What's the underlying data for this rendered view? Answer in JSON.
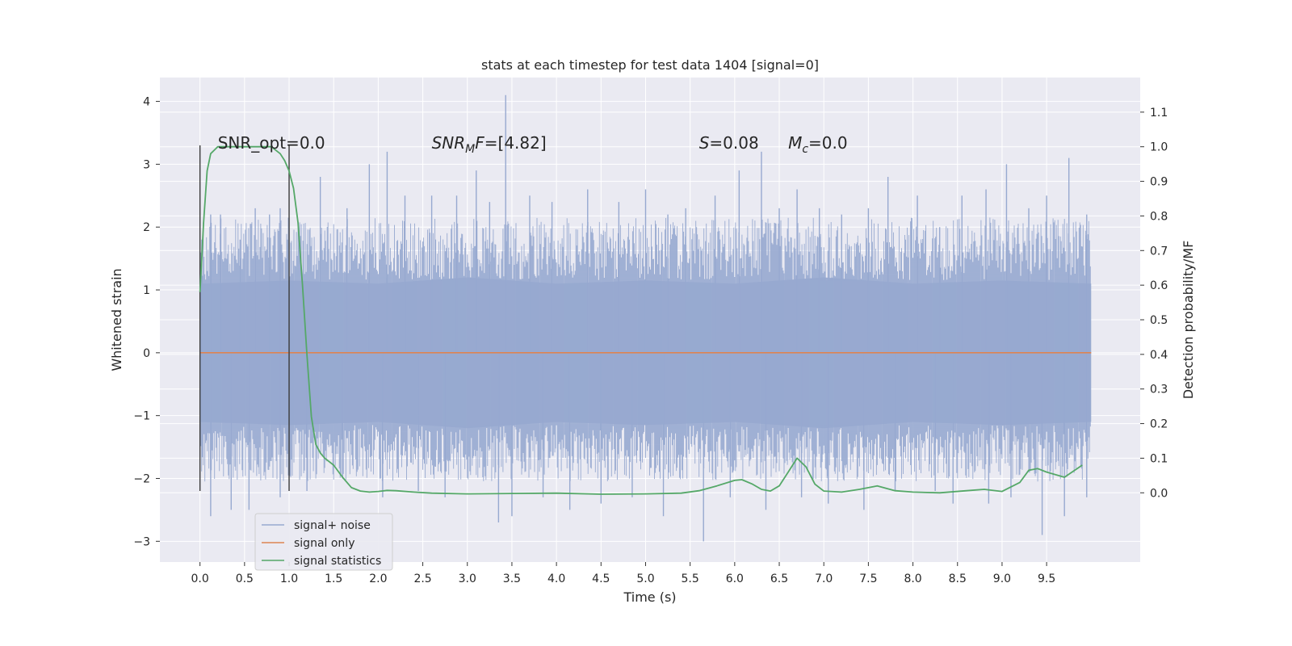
{
  "chart_data": {
    "type": "line",
    "title": "stats at each timestep for test data 1404 [signal=0]",
    "xlabel": "Time (s)",
    "ylabel": "Whitened strain",
    "y2label": "Detection probability/MF",
    "xlim": [
      -0.45,
      10.55
    ],
    "ylim": [
      -3.33,
      4.38
    ],
    "y2lim": [
      -0.2,
      1.2
    ],
    "xticks": [
      "0.0",
      "0.5",
      "1.0",
      "1.5",
      "2.0",
      "2.5",
      "3.0",
      "3.5",
      "4.0",
      "4.5",
      "5.0",
      "5.5",
      "6.0",
      "6.5",
      "7.0",
      "7.5",
      "8.0",
      "8.5",
      "9.0",
      "9.5"
    ],
    "yticks": [
      "4",
      "3",
      "2",
      "1",
      "0",
      "−1",
      "−2",
      "−3"
    ],
    "y2ticks": [
      "1.1",
      "1.0",
      "0.9",
      "0.8",
      "0.7",
      "0.6",
      "0.5",
      "0.4",
      "0.3",
      "0.2",
      "0.1",
      "0.0"
    ],
    "grid": true,
    "legend_position": "lower-left",
    "colors": {
      "background": "#eaeaf2",
      "grid": "#ffffff",
      "noise": "#97a9d0",
      "signal": "#dd8452",
      "stats": "#55a868",
      "vline": "#3a3a3a"
    },
    "series": [
      {
        "name": "signal+ noise",
        "band_upper": [
          1.1,
          1.15,
          1.1,
          1.2,
          1.1,
          1.15,
          1.1,
          1.2,
          1.1,
          1.15,
          1.1
        ],
        "band_lower": [
          -1.1,
          -1.15,
          -1.1,
          -1.2,
          -1.1,
          -1.15,
          -1.1,
          -1.2,
          -1.1,
          -1.15,
          -1.1
        ],
        "spikes": [
          {
            "x": 0.02,
            "y": 1.8
          },
          {
            "x": 0.12,
            "y": 2.2
          },
          {
            "x": 0.23,
            "y": 2.2
          },
          {
            "x": 0.45,
            "y": 1.8
          },
          {
            "x": 0.62,
            "y": 2.3
          },
          {
            "x": 0.78,
            "y": 2.2
          },
          {
            "x": 0.9,
            "y": 2.3
          },
          {
            "x": 1.35,
            "y": 2.8
          },
          {
            "x": 1.65,
            "y": 2.3
          },
          {
            "x": 1.9,
            "y": 3.0
          },
          {
            "x": 2.1,
            "y": 3.2
          },
          {
            "x": 2.3,
            "y": 2.5
          },
          {
            "x": 2.6,
            "y": 2.5
          },
          {
            "x": 2.88,
            "y": 2.5
          },
          {
            "x": 3.1,
            "y": 2.9
          },
          {
            "x": 3.25,
            "y": 2.4
          },
          {
            "x": 3.43,
            "y": 4.1
          },
          {
            "x": 3.7,
            "y": 2.5
          },
          {
            "x": 3.95,
            "y": 2.4
          },
          {
            "x": 4.35,
            "y": 2.6
          },
          {
            "x": 4.7,
            "y": 2.4
          },
          {
            "x": 5.0,
            "y": 2.6
          },
          {
            "x": 5.25,
            "y": 2.2
          },
          {
            "x": 5.45,
            "y": 2.3
          },
          {
            "x": 5.78,
            "y": 2.5
          },
          {
            "x": 6.05,
            "y": 2.9
          },
          {
            "x": 6.3,
            "y": 3.2
          },
          {
            "x": 6.5,
            "y": 2.3
          },
          {
            "x": 6.7,
            "y": 2.6
          },
          {
            "x": 6.95,
            "y": 2.3
          },
          {
            "x": 7.2,
            "y": 2.2
          },
          {
            "x": 7.5,
            "y": 2.3
          },
          {
            "x": 7.72,
            "y": 2.8
          },
          {
            "x": 8.05,
            "y": 2.5
          },
          {
            "x": 8.3,
            "y": 2.0
          },
          {
            "x": 8.55,
            "y": 2.5
          },
          {
            "x": 8.82,
            "y": 2.6
          },
          {
            "x": 9.05,
            "y": 3.0
          },
          {
            "x": 9.3,
            "y": 2.3
          },
          {
            "x": 9.5,
            "y": 2.5
          },
          {
            "x": 9.75,
            "y": 3.1
          },
          {
            "x": 9.95,
            "y": 2.2
          },
          {
            "x": 0.12,
            "y": -2.6
          },
          {
            "x": 0.35,
            "y": -2.5
          },
          {
            "x": 0.55,
            "y": -2.5
          },
          {
            "x": 0.9,
            "y": -2.3
          },
          {
            "x": 1.2,
            "y": -2.2
          },
          {
            "x": 1.6,
            "y": -2.0
          },
          {
            "x": 2.05,
            "y": -2.3
          },
          {
            "x": 2.45,
            "y": -2.2
          },
          {
            "x": 2.75,
            "y": -2.3
          },
          {
            "x": 3.35,
            "y": -2.7
          },
          {
            "x": 3.5,
            "y": -2.6
          },
          {
            "x": 3.85,
            "y": -2.3
          },
          {
            "x": 4.15,
            "y": -2.5
          },
          {
            "x": 4.5,
            "y": -2.4
          },
          {
            "x": 4.85,
            "y": -2.3
          },
          {
            "x": 5.2,
            "y": -2.6
          },
          {
            "x": 5.65,
            "y": -3.0
          },
          {
            "x": 5.95,
            "y": -2.3
          },
          {
            "x": 6.35,
            "y": -2.5
          },
          {
            "x": 6.75,
            "y": -2.3
          },
          {
            "x": 7.05,
            "y": -2.4
          },
          {
            "x": 7.45,
            "y": -2.5
          },
          {
            "x": 7.8,
            "y": -2.2
          },
          {
            "x": 8.25,
            "y": -2.2
          },
          {
            "x": 8.45,
            "y": -2.4
          },
          {
            "x": 8.85,
            "y": -2.4
          },
          {
            "x": 9.1,
            "y": -2.3
          },
          {
            "x": 9.45,
            "y": -2.9
          },
          {
            "x": 9.7,
            "y": -2.6
          },
          {
            "x": 9.95,
            "y": -2.3
          }
        ]
      },
      {
        "name": "signal only",
        "x": [
          0,
          10
        ],
        "y": [
          0,
          0
        ]
      },
      {
        "name": "signal statistics",
        "x": [
          0.0,
          0.04,
          0.08,
          0.12,
          0.16,
          0.2,
          0.25,
          0.3,
          0.4,
          0.5,
          0.6,
          0.7,
          0.8,
          0.9,
          0.95,
          1.0,
          1.05,
          1.1,
          1.15,
          1.2,
          1.25,
          1.3,
          1.35,
          1.4,
          1.5,
          1.6,
          1.7,
          1.8,
          1.9,
          2.0,
          2.1,
          2.2,
          2.4,
          2.6,
          3.0,
          3.5,
          4.0,
          4.5,
          5.0,
          5.4,
          5.6,
          5.8,
          6.0,
          6.08,
          6.2,
          6.3,
          6.4,
          6.5,
          6.6,
          6.7,
          6.8,
          6.9,
          7.0,
          7.2,
          7.4,
          7.6,
          7.8,
          8.0,
          8.3,
          8.6,
          8.8,
          9.0,
          9.2,
          9.3,
          9.4,
          9.5,
          9.7,
          9.9
        ],
        "y": [
          0.58,
          0.78,
          0.93,
          0.98,
          0.99,
          1.0,
          1.0,
          1.0,
          1.0,
          1.0,
          1.0,
          1.0,
          1.0,
          0.98,
          0.96,
          0.93,
          0.88,
          0.78,
          0.6,
          0.4,
          0.22,
          0.14,
          0.115,
          0.1,
          0.08,
          0.045,
          0.015,
          0.005,
          0.002,
          0.004,
          0.007,
          0.006,
          0.002,
          -0.001,
          -0.003,
          -0.002,
          -0.001,
          -0.004,
          -0.003,
          -0.001,
          0.006,
          0.02,
          0.036,
          0.038,
          0.025,
          0.01,
          0.005,
          0.02,
          0.06,
          0.1,
          0.075,
          0.025,
          0.005,
          0.002,
          0.01,
          0.02,
          0.006,
          0.002,
          0.0,
          0.006,
          0.01,
          0.004,
          0.03,
          0.065,
          0.07,
          0.06,
          0.045,
          0.08
        ]
      }
    ],
    "vlines": [
      {
        "x": 0.0,
        "y_from": -2.2,
        "y_to": 3.3
      },
      {
        "x": 1.0,
        "y_from": -2.2,
        "y_to": 3.3
      }
    ],
    "annotations": [
      {
        "id": "snr_opt",
        "x": 0.2,
        "y": 3.25,
        "parts": [
          {
            "t": "SNR_opt=0.0",
            "it": false
          }
        ]
      },
      {
        "id": "snr_mf",
        "x": 2.6,
        "y": 3.25,
        "parts": [
          {
            "t": "SNR",
            "it": true
          },
          {
            "t": "M",
            "it": true,
            "sub": true
          },
          {
            "t": "F",
            "it": true
          },
          {
            "t": "=[4.82]",
            "it": false
          }
        ]
      },
      {
        "id": "s_val",
        "x": 5.6,
        "y": 3.25,
        "parts": [
          {
            "t": "S",
            "it": true
          },
          {
            "t": "=0.08",
            "it": false
          }
        ]
      },
      {
        "id": "mc_val",
        "x": 6.6,
        "y": 3.25,
        "parts": [
          {
            "t": "M",
            "it": true
          },
          {
            "t": "c",
            "it": true,
            "sub": true
          },
          {
            "t": "=0.0",
            "it": false
          }
        ]
      }
    ]
  }
}
